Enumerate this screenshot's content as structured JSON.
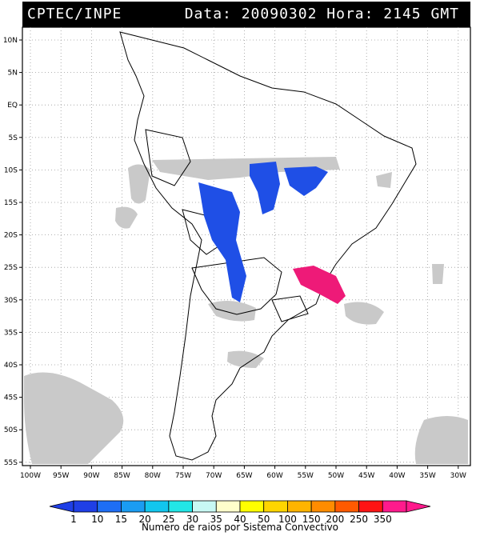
{
  "header": {
    "source": "CPTEC/INPE",
    "date_label": "Data:",
    "date": "20090302",
    "time_label": "Hora:",
    "time": "2145 GMT"
  },
  "lat_labels": [
    "10N",
    "5N",
    "EQ",
    "5S",
    "10S",
    "15S",
    "20S",
    "25S",
    "30S",
    "35S",
    "40S",
    "45S",
    "50S",
    "55S"
  ],
  "lon_labels": [
    "100W",
    "95W",
    "90W",
    "85W",
    "80W",
    "75W",
    "70W",
    "65W",
    "60W",
    "55W",
    "50W",
    "45W",
    "40W",
    "35W",
    "30W"
  ],
  "legend": {
    "ticks": [
      "1",
      "10",
      "15",
      "20",
      "25",
      "30",
      "35",
      "40",
      "50",
      "100",
      "150",
      "200",
      "250",
      "350"
    ],
    "colors": [
      "#1f3fe6",
      "#1e6ef5",
      "#1a9cf2",
      "#12c6ee",
      "#22e6e6",
      "#c8f8f4",
      "#fffecb",
      "#ffff00",
      "#ffd500",
      "#ffb400",
      "#ff8c00",
      "#ff5a00",
      "#ff1414",
      "#ff1a8c"
    ],
    "title": "Numero de raios por Sistema Convectivo"
  },
  "colors": {
    "clouds": "#c9c9c9",
    "lightning_low": "#1f4fe6",
    "lightning_high": "#ee1a78",
    "coast": "#000000"
  }
}
